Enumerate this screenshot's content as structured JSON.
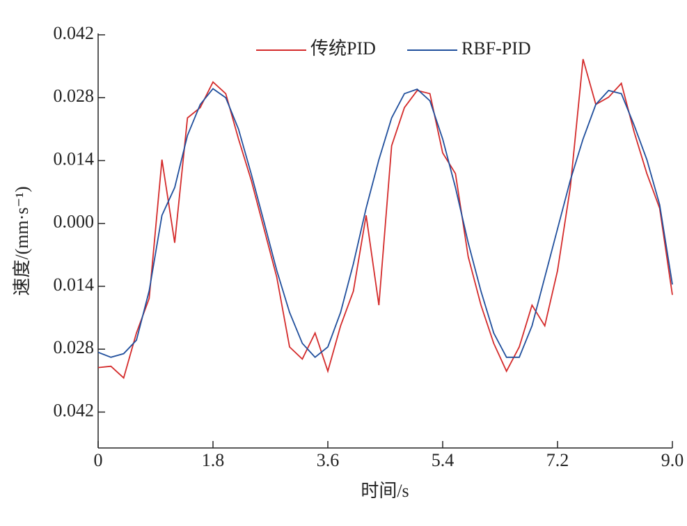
{
  "chart_data": {
    "type": "line",
    "xlabel": "时间/s",
    "ylabel": "速度/(mm·s⁻¹)",
    "x": [
      0,
      0.2,
      0.4,
      0.6,
      0.8,
      1.0,
      1.2,
      1.4,
      1.6,
      1.8,
      2.0,
      2.2,
      2.4,
      2.6,
      2.8,
      3.0,
      3.2,
      3.4,
      3.6,
      3.8,
      4.0,
      4.2,
      4.4,
      4.6,
      4.8,
      5.0,
      5.2,
      5.4,
      5.6,
      5.8,
      6.0,
      6.2,
      6.4,
      6.6,
      6.8,
      7.0,
      7.2,
      7.4,
      7.6,
      7.8,
      8.0,
      8.2,
      8.4,
      8.6,
      8.8,
      9.0
    ],
    "series": [
      {
        "name": "传统PID",
        "color": "#d42a2a",
        "values": [
          -0.0321,
          -0.0318,
          -0.0344,
          -0.0244,
          -0.0167,
          0.0142,
          -0.0043,
          0.0235,
          0.0258,
          0.0315,
          0.0289,
          0.0188,
          0.0096,
          -0.0012,
          -0.012,
          -0.0275,
          -0.0302,
          -0.0244,
          -0.0329,
          -0.0228,
          -0.0151,
          0.0018,
          -0.0182,
          0.0173,
          0.0258,
          0.0296,
          0.0289,
          0.0157,
          0.0111,
          -0.0074,
          -0.0182,
          -0.0267,
          -0.0329,
          -0.0275,
          -0.0182,
          -0.0228,
          -0.0105,
          0.008,
          0.0366,
          0.0265,
          0.0281,
          0.0312,
          0.0204,
          0.0111,
          0.0034,
          -0.0159
        ]
      },
      {
        "name": "RBF-PID",
        "color": "#1f4e9c",
        "values": [
          -0.0287,
          -0.0298,
          -0.029,
          -0.026,
          -0.015,
          0.0018,
          0.008,
          0.0196,
          0.0265,
          0.03,
          0.028,
          0.021,
          0.011,
          0.0003,
          -0.0105,
          -0.0198,
          -0.0267,
          -0.0298,
          -0.0275,
          -0.0198,
          -0.009,
          0.0034,
          0.0142,
          0.0235,
          0.0289,
          0.0299,
          0.0273,
          0.0188,
          0.008,
          -0.0043,
          -0.0151,
          -0.0244,
          -0.0298,
          -0.0298,
          -0.0228,
          -0.012,
          -0.0012,
          0.0096,
          0.0188,
          0.0265,
          0.0296,
          0.0289,
          0.0219,
          0.0142,
          0.0042,
          -0.0136
        ]
      }
    ],
    "xlim": [
      0,
      9
    ],
    "xticks": [
      0,
      1.8,
      3.6,
      5.4,
      7.2,
      {
        "value": 9,
        "label": "9.0"
      }
    ],
    "ylim": [
      -0.05,
      0.042
    ],
    "yticks": [
      {
        "value": 0.042,
        "label": "0.042"
      },
      {
        "value": 0.028,
        "label": "0.028"
      },
      {
        "value": 0.014,
        "label": "0.014"
      },
      {
        "value": 0,
        "label": "0.000"
      },
      {
        "value": -0.014,
        "label": "0.014"
      },
      {
        "value": -0.028,
        "label": "0.028"
      },
      {
        "value": -0.042,
        "label": "0.042"
      }
    ],
    "legend": "top"
  }
}
